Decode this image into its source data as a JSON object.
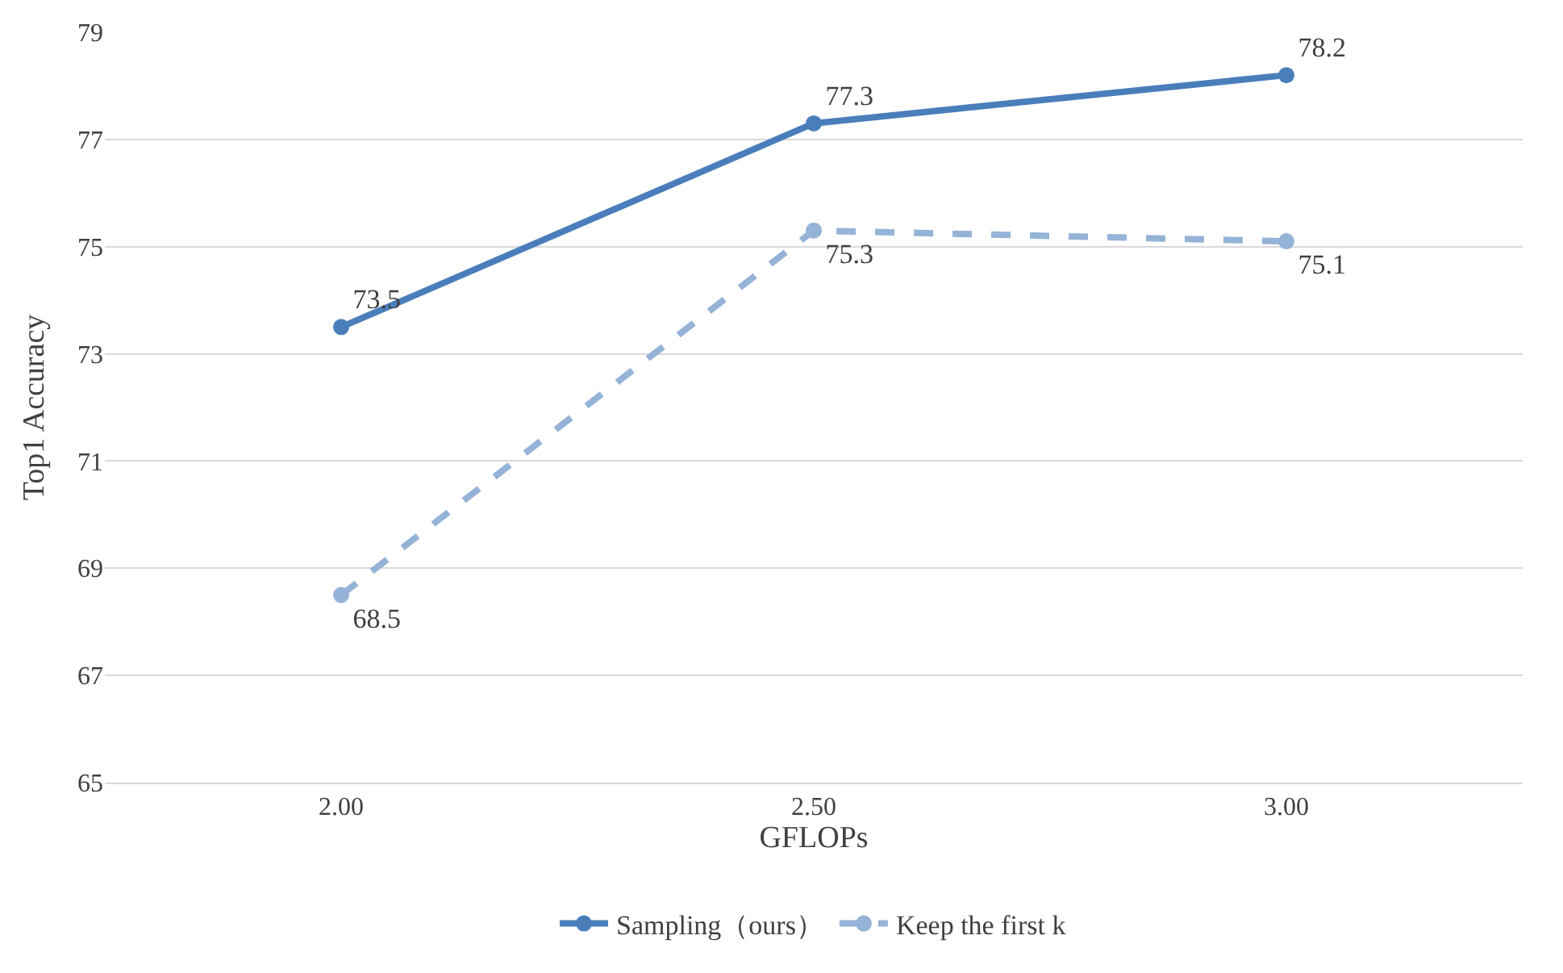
{
  "chart_data": {
    "type": "line",
    "xlabel": "GFLOPs",
    "ylabel": "Top1 Accuracy",
    "categories": [
      "2.00",
      "2.50",
      "3.00"
    ],
    "series": [
      {
        "name": "Sampling（ours）",
        "color": "#4a7ebb",
        "values": [
          73.5,
          77.3,
          78.2
        ],
        "line_style": "solid"
      },
      {
        "name": "Keep the first k",
        "color": "#95b3d7",
        "values": [
          68.5,
          75.3,
          75.1
        ],
        "line_style": "dashed"
      }
    ],
    "ylim": [
      65,
      79
    ],
    "yticks": [
      65,
      67,
      69,
      71,
      73,
      75,
      77,
      79
    ],
    "grid": "y",
    "legend": "bottom",
    "marker": "circle",
    "data_labels": true
  }
}
